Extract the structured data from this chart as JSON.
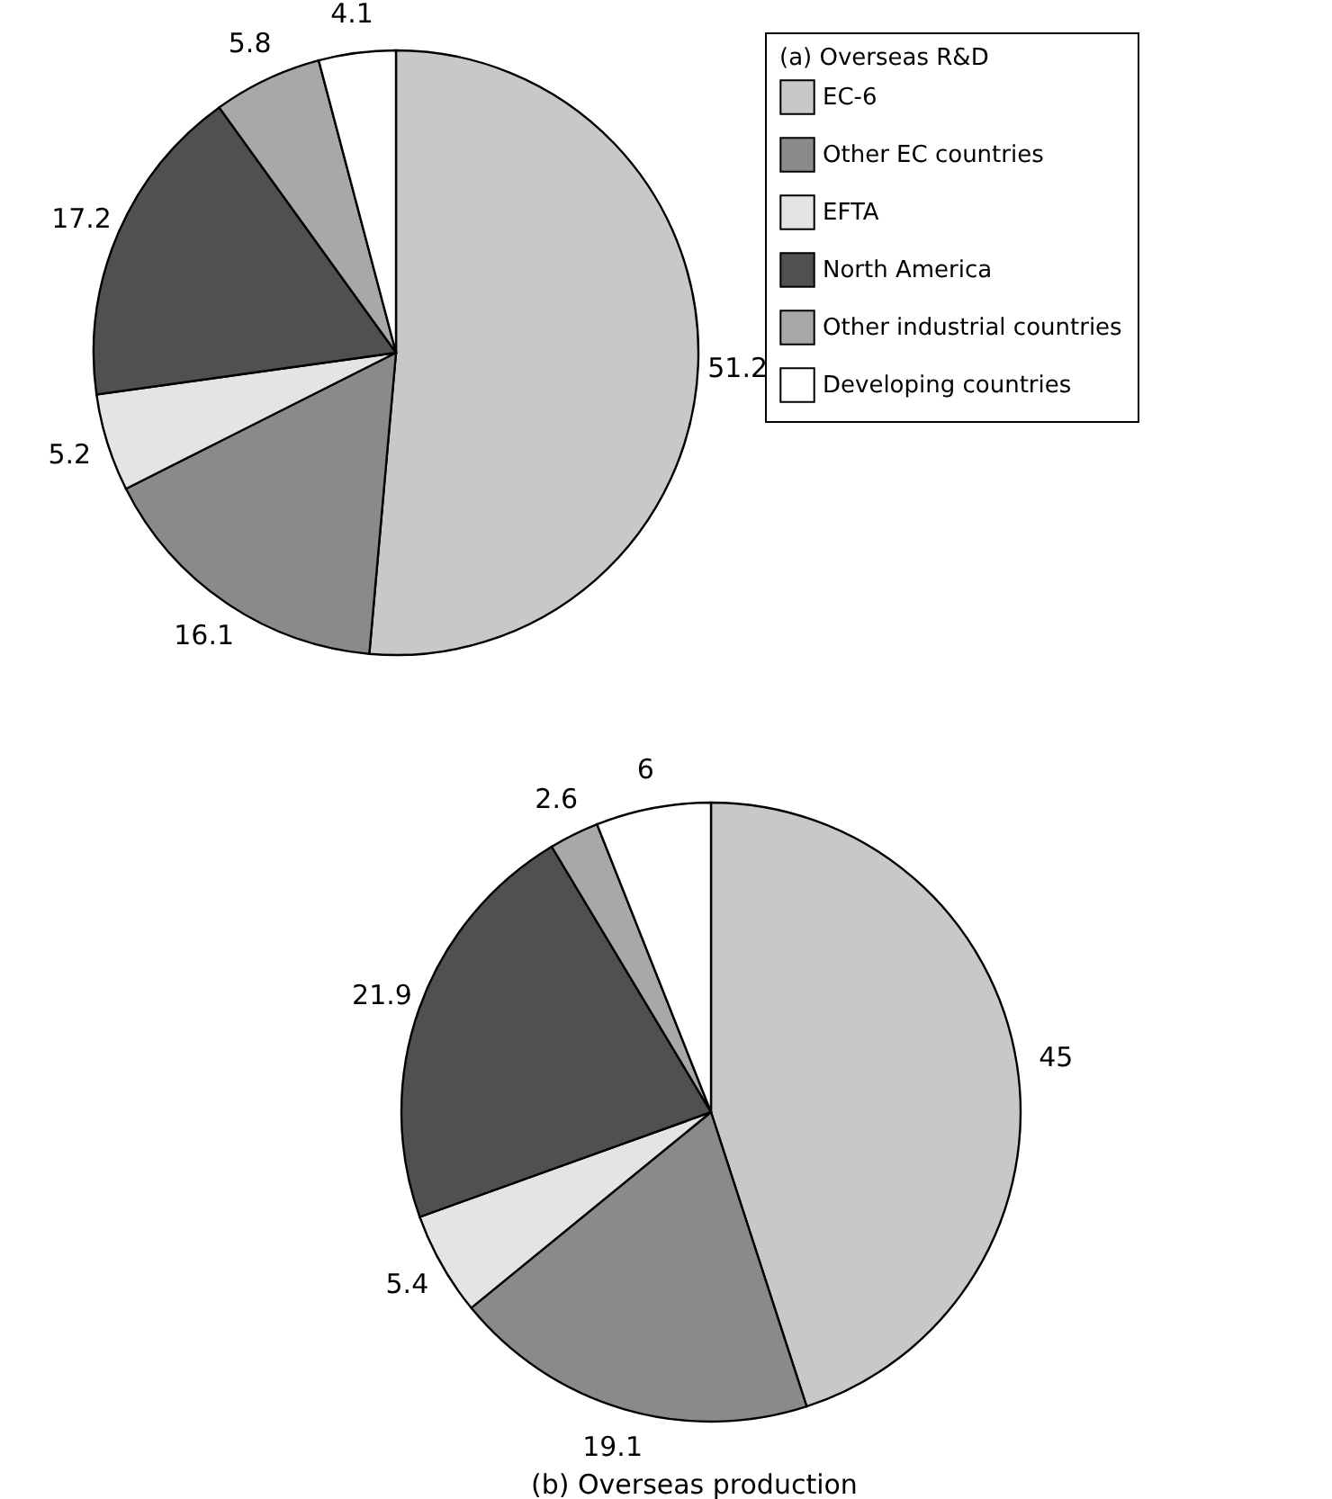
{
  "chart_data": [
    {
      "type": "pie",
      "legend_title": "(a) Overseas R&D",
      "legend": "top right",
      "data_labels": true,
      "categories": [
        "EC-6",
        "Other EC countries",
        "EFTA",
        "North America",
        "Other industrial countries",
        "Developing countries"
      ],
      "values": [
        51.2,
        16.1,
        5.2,
        17.2,
        5.8,
        4.1
      ],
      "colors": [
        "#c8c8c8",
        "#8a8a8a",
        "#e4e4e4",
        "#505050",
        "#a8a8a8",
        "#ffffff"
      ]
    },
    {
      "type": "pie",
      "title": "(b) Overseas production",
      "legend": false,
      "data_labels": true,
      "categories": [
        null,
        null,
        null,
        null,
        null,
        null
      ],
      "values": [
        45,
        19.1,
        5.4,
        21.9,
        2.6,
        6
      ],
      "colors": [
        "#c8c8c8",
        "#8a8a8a",
        "#e4e4e4",
        "#505050",
        "#a8a8a8",
        "#ffffff"
      ]
    }
  ]
}
